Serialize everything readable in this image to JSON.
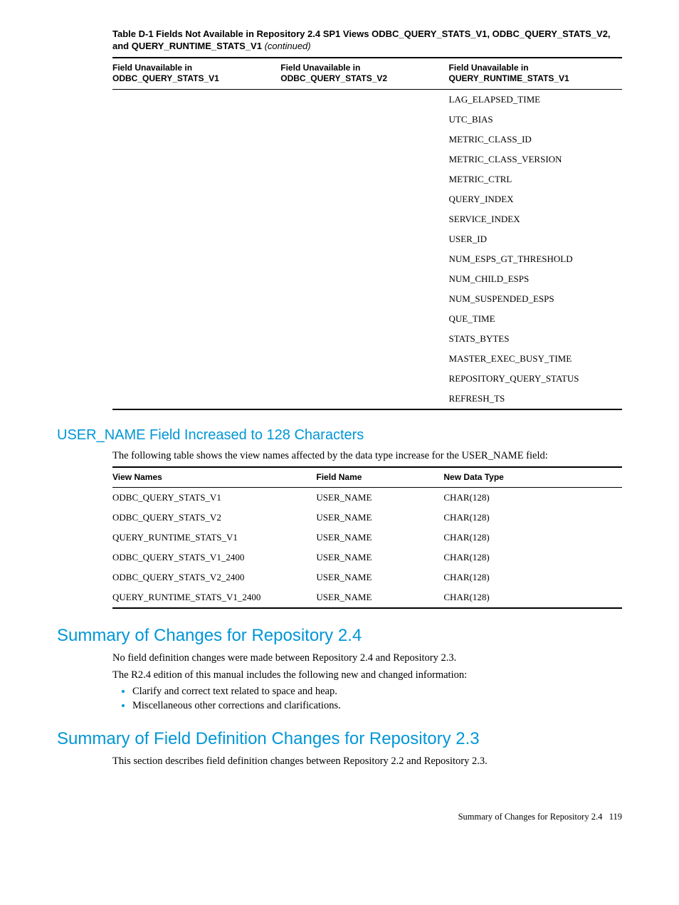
{
  "table1": {
    "caption_prefix": "Table D-1 Fields Not Available in Repository 2.4 SP1 Views ODBC_QUERY_STATS_V1, ODBC_QUERY_STATS_V2, and QUERY_RUNTIME_STATS_V1 ",
    "caption_suffix": "(continued)",
    "headers": {
      "c1a": "Field Unavailable in",
      "c1b": "ODBC_QUERY_STATS_V1",
      "c2a": "Field Unavailable in",
      "c2b": "ODBC_QUERY_STATS_V2",
      "c3a": "Field Unavailable in",
      "c3b": "QUERY_RUNTIME_STATS_V1"
    },
    "col3": [
      "LAG_ELAPSED_TIME",
      "UTC_BIAS",
      "METRIC_CLASS_ID",
      "METRIC_CLASS_VERSION",
      "METRIC_CTRL",
      "QUERY_INDEX",
      "SERVICE_INDEX",
      "USER_ID",
      "NUM_ESPS_GT_THRESHOLD",
      "NUM_CHILD_ESPS",
      "NUM_SUSPENDED_ESPS",
      "QUE_TIME",
      "STATS_BYTES",
      "MASTER_EXEC_BUSY_TIME",
      "REPOSITORY_QUERY_STATUS",
      "REFRESH_TS"
    ]
  },
  "section1": {
    "heading": "USER_NAME Field Increased to 128 Characters",
    "intro": "The following table shows the view names affected by the data type increase for the USER_NAME field:"
  },
  "table2": {
    "headers": {
      "c1": "View Names",
      "c2": "Field Name",
      "c3": "New Data Type"
    },
    "rows": [
      {
        "v": "ODBC_QUERY_STATS_V1",
        "f": "USER_NAME",
        "t": "CHAR(128)"
      },
      {
        "v": "ODBC_QUERY_STATS_V2",
        "f": "USER_NAME",
        "t": "CHAR(128)"
      },
      {
        "v": "QUERY_RUNTIME_STATS_V1",
        "f": "USER_NAME",
        "t": "CHAR(128)"
      },
      {
        "v": "ODBC_QUERY_STATS_V1_2400",
        "f": "USER_NAME",
        "t": "CHAR(128)"
      },
      {
        "v": "ODBC_QUERY_STATS_V2_2400",
        "f": "USER_NAME",
        "t": "CHAR(128)"
      },
      {
        "v": "QUERY_RUNTIME_STATS_V1_2400",
        "f": "USER_NAME",
        "t": "CHAR(128)"
      }
    ]
  },
  "section2": {
    "heading": "Summary of Changes for Repository 2.4",
    "p1": "No field definition changes were made between Repository 2.4 and Repository 2.3.",
    "p2": "The R2.4 edition of this manual includes the following new and changed information:",
    "bullets": [
      "Clarify and correct text related to space and heap.",
      "Miscellaneous other corrections and clarifications."
    ]
  },
  "section3": {
    "heading": "Summary of Field Definition Changes for Repository 2.3",
    "p1": "This section describes field definition changes between Repository 2.2 and Repository 2.3."
  },
  "footer": {
    "text": "Summary of Changes for Repository 2.4",
    "page": "119"
  }
}
